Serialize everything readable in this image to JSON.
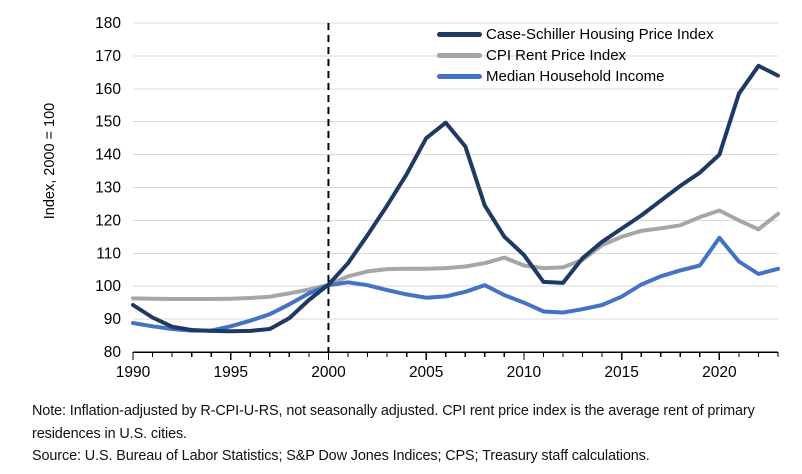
{
  "figure": {
    "note": "Note: Inflation-adjusted by R-CPI-U-RS, not seasonally adjusted. CPI rent price index is the average rent of primary residences in U.S. cities.",
    "source": "Source: U.S. Bureau of Labor Statistics; S&P Dow Jones Indices; CPS; Treasury staff calculations."
  },
  "colors": {
    "case_schiller": "#1f3864",
    "cpi_rent": "#a6a6a6",
    "median_income": "#4472c4",
    "gridline": "#d9d9d9",
    "axis": "#000000",
    "dashed_line": "#000000",
    "background": "#ffffff"
  },
  "chart_data": {
    "type": "line",
    "title": "",
    "xlabel": "",
    "ylabel": "Index, 2000 = 100",
    "ylim": [
      80,
      180
    ],
    "ytick_step": 10,
    "xlim": [
      1990,
      2023
    ],
    "xticks": [
      1990,
      1995,
      2000,
      2005,
      2010,
      2015,
      2020
    ],
    "grid": "horizontal",
    "legend_position": "top-right",
    "annotations": [
      {
        "type": "vline-dashed",
        "x": 2000
      }
    ],
    "x": [
      1990,
      1991,
      1992,
      1993,
      1994,
      1995,
      1996,
      1997,
      1998,
      1999,
      2000,
      2001,
      2002,
      2003,
      2004,
      2005,
      2006,
      2007,
      2008,
      2009,
      2010,
      2011,
      2012,
      2013,
      2014,
      2015,
      2016,
      2017,
      2018,
      2019,
      2020,
      2021,
      2022,
      2023
    ],
    "series": [
      {
        "name": "Case-Schiller Housing Price Index",
        "color": "#1f3864",
        "values": [
          94.3,
          90.5,
          87.7,
          86.7,
          86.4,
          86.3,
          86.4,
          87,
          90.3,
          95.8,
          100.5,
          107,
          115.5,
          124.5,
          134,
          145,
          149.7,
          142.5,
          124.5,
          115,
          109.5,
          101.3,
          101,
          108.5,
          113.5,
          117.5,
          121.5,
          126,
          130.5,
          134.5,
          140,
          158.5,
          167,
          164
        ]
      },
      {
        "name": "CPI Rent Price Index",
        "color": "#a6a6a6",
        "values": [
          96.3,
          96.2,
          96.1,
          96.1,
          96.1,
          96.2,
          96.4,
          96.8,
          97.8,
          99,
          100.4,
          103,
          104.5,
          105.2,
          105.3,
          105.3,
          105.5,
          106,
          107,
          108.7,
          106.3,
          105.5,
          105.7,
          108,
          112.5,
          115,
          116.8,
          117.6,
          118.5,
          121,
          123,
          120,
          117.3,
          122
        ]
      },
      {
        "name": "Median Household Income",
        "color": "#4472c4",
        "values": [
          88.8,
          87.8,
          87,
          86.5,
          86.5,
          87.8,
          89.5,
          91.5,
          94.5,
          97.8,
          100.3,
          101.2,
          100.3,
          98.8,
          97.5,
          96.5,
          96.9,
          98.3,
          100.3,
          97.3,
          95,
          92.3,
          92,
          93,
          94.3,
          96.8,
          100.5,
          103,
          104.8,
          106.3,
          114.7,
          107.5,
          103.7,
          105.3
        ]
      }
    ]
  }
}
